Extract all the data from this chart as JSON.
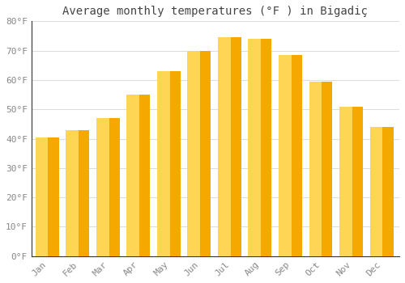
{
  "title": "Average monthly temperatures (°F ) in Bigadiç",
  "months": [
    "Jan",
    "Feb",
    "Mar",
    "Apr",
    "May",
    "Jun",
    "Jul",
    "Aug",
    "Sep",
    "Oct",
    "Nov",
    "Dec"
  ],
  "values": [
    40.5,
    43.0,
    47.0,
    55.0,
    63.0,
    70.0,
    74.5,
    74.0,
    68.5,
    59.5,
    51.0,
    44.0
  ],
  "bar_color_outer": "#F5A800",
  "bar_color_inner": "#FFD555",
  "ylim": [
    0,
    80
  ],
  "yticks": [
    0,
    10,
    20,
    30,
    40,
    50,
    60,
    70,
    80
  ],
  "ytick_labels": [
    "0°F",
    "10°F",
    "20°F",
    "30°F",
    "40°F",
    "50°F",
    "60°F",
    "70°F",
    "80°F"
  ],
  "background_color": "#ffffff",
  "plot_bg_color": "#ffffff",
  "grid_color": "#dddddd",
  "title_fontsize": 10,
  "tick_fontsize": 8,
  "font_family": "monospace"
}
